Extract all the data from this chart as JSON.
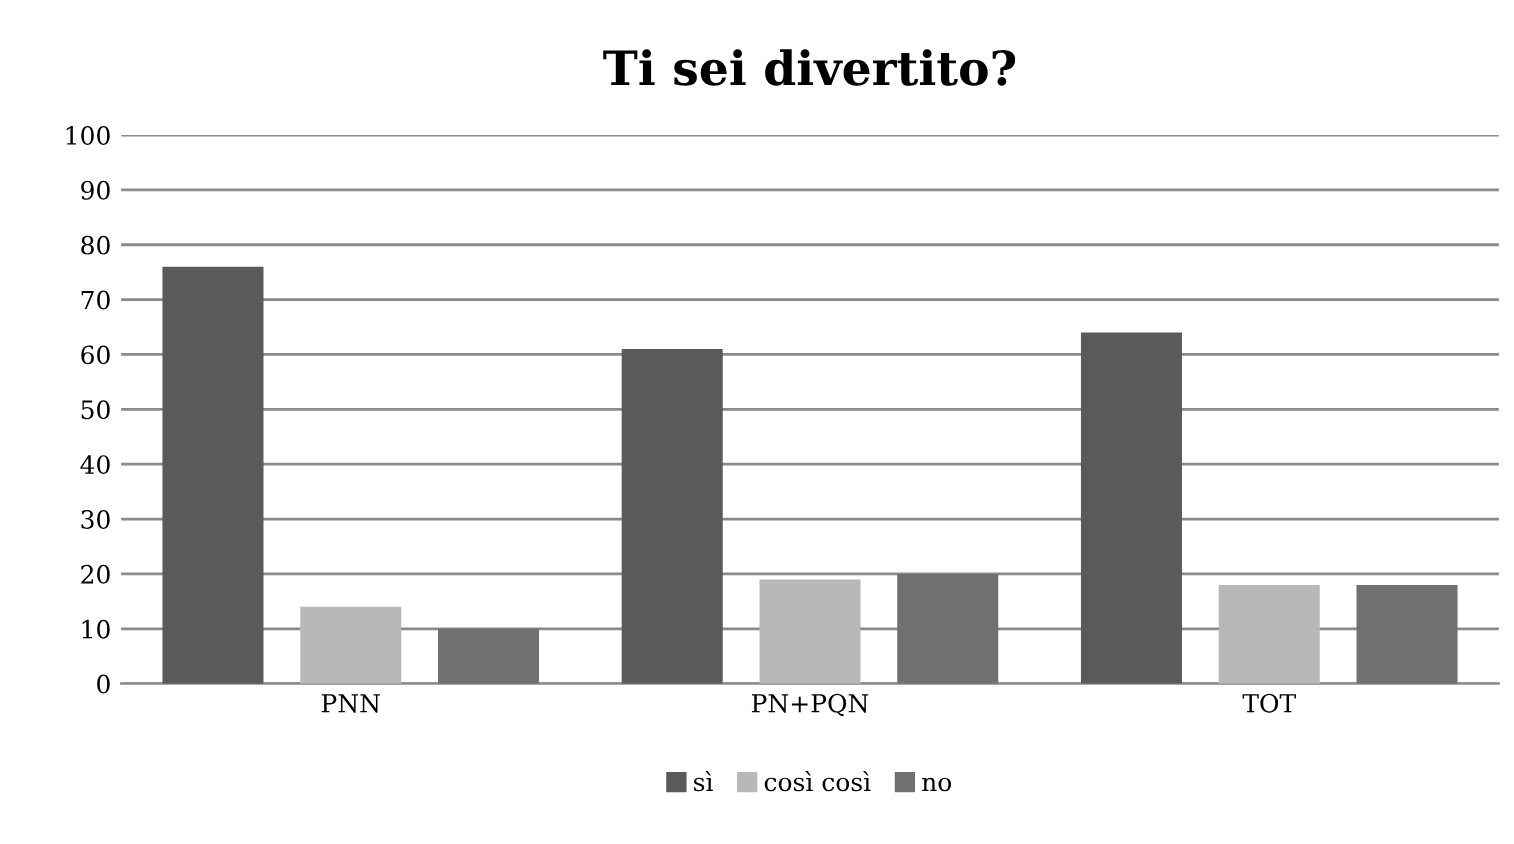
{
  "chart_data": {
    "type": "bar",
    "title": "Ti sei divertito?",
    "categories": [
      "PNN",
      "PN+PQN",
      "TOT"
    ],
    "series": [
      {
        "name": "sì",
        "color": "#5a5a5a",
        "values": [
          76,
          61,
          64
        ]
      },
      {
        "name": "così così",
        "color": "#b8b8b8",
        "values": [
          14,
          19,
          18
        ]
      },
      {
        "name": "no",
        "color": "#707070",
        "values": [
          10,
          20,
          18
        ]
      }
    ],
    "ylim": [
      0,
      100
    ],
    "yticks": [
      0,
      10,
      20,
      30,
      40,
      50,
      60,
      70,
      80,
      90,
      100
    ],
    "grid": "y",
    "legend": "bottom"
  }
}
